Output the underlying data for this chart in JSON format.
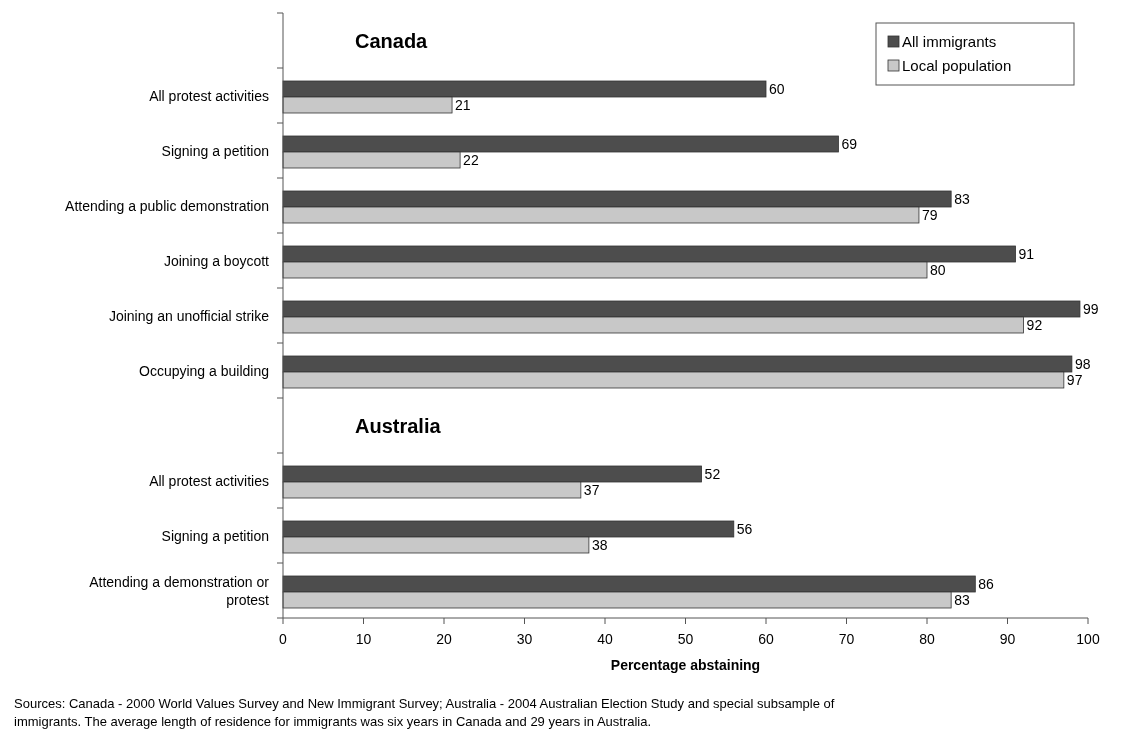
{
  "chart_data": {
    "type": "bar",
    "orientation": "horizontal",
    "categories": [
      null,
      "All protest activities",
      "Signing a petition",
      "Attending a public demonstration",
      "Joining a boycott",
      "Joining an unofficial strike",
      "Occupying a building",
      null,
      "All protest activities",
      "Signing a petition",
      "Attending a demonstration or protest"
    ],
    "series": [
      {
        "name": "All immigrants",
        "color": "#4d4d4d",
        "values": [
          null,
          60,
          69,
          83,
          91,
          99,
          98,
          null,
          52,
          56,
          86
        ]
      },
      {
        "name": "Local population",
        "color": "#c8c8c8",
        "values": [
          null,
          21,
          22,
          79,
          80,
          92,
          97,
          null,
          37,
          38,
          83
        ]
      }
    ],
    "xlim": [
      0,
      100
    ],
    "xticks": [
      0,
      10,
      20,
      30,
      40,
      50,
      60,
      70,
      80,
      90,
      100
    ],
    "xlabel": "Percentage abstaining",
    "data_labels": true,
    "legend": "top right",
    "grid": false,
    "annotations": [
      "Canada",
      "Australia",
      "Sources: Canada - 2000 World Values Survey and New Immigrant Survey; Australia - 2004 Australian Election Study and special subsample of immigrants. The average length of residence for immigrants was six years in Canada and 29 years in Australia."
    ]
  }
}
